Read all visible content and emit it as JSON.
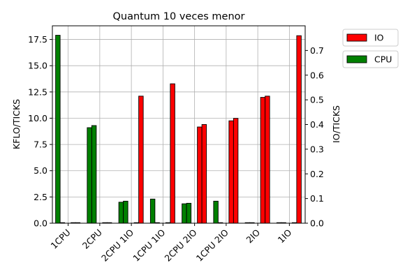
{
  "chart_data": {
    "type": "bar",
    "title": "Quantum 10 veces menor",
    "categories": [
      "1CPU",
      "2CPU",
      "2CPU 1IO",
      "1CPU 1IO",
      "2CPU 2IO",
      "1CPU 2IO",
      "2IO",
      "1IO"
    ],
    "left_axis": {
      "label": "KFLO/TICKS",
      "color": "#008000",
      "ylim": [
        0,
        18.8
      ],
      "ticks": [
        "0.0",
        "2.5",
        "5.0",
        "7.5",
        "10.0",
        "12.5",
        "15.0",
        "17.5"
      ],
      "tick_values": [
        0,
        2.5,
        5.0,
        7.5,
        10.0,
        12.5,
        15.0,
        17.5
      ]
    },
    "right_axis": {
      "label": "IO/TICKS",
      "color": "#ff0000",
      "ylim": [
        0,
        0.8
      ],
      "ticks": [
        "0.0",
        "0.1",
        "0.2",
        "0.3",
        "0.4",
        "0.5",
        "0.6",
        "0.7"
      ],
      "tick_values": [
        0,
        0.1,
        0.2,
        0.3,
        0.4,
        0.5,
        0.6,
        0.7
      ]
    },
    "series": [
      {
        "name": "CPU",
        "axis": "left",
        "color": "#008000",
        "values": [
          [
            17.9,
            0
          ],
          [
            9.1,
            9.3
          ],
          [
            2.0,
            2.1
          ],
          [
            2.3,
            0
          ],
          [
            1.85,
            1.9
          ],
          [
            2.1,
            0
          ],
          [
            0,
            0
          ],
          [
            0,
            0
          ]
        ]
      },
      {
        "name": "IO",
        "axis": "right",
        "color": "#ff0000",
        "values": [
          [
            0,
            0
          ],
          [
            0,
            0
          ],
          [
            0,
            0.515
          ],
          [
            0,
            0.565
          ],
          [
            0.39,
            0.4
          ],
          [
            0.415,
            0.425
          ],
          [
            0.51,
            0.515
          ],
          [
            0,
            0.76
          ]
        ]
      }
    ],
    "legend": [
      "IO",
      "CPU"
    ],
    "legend_position": "outside-right-top",
    "grid": true
  }
}
